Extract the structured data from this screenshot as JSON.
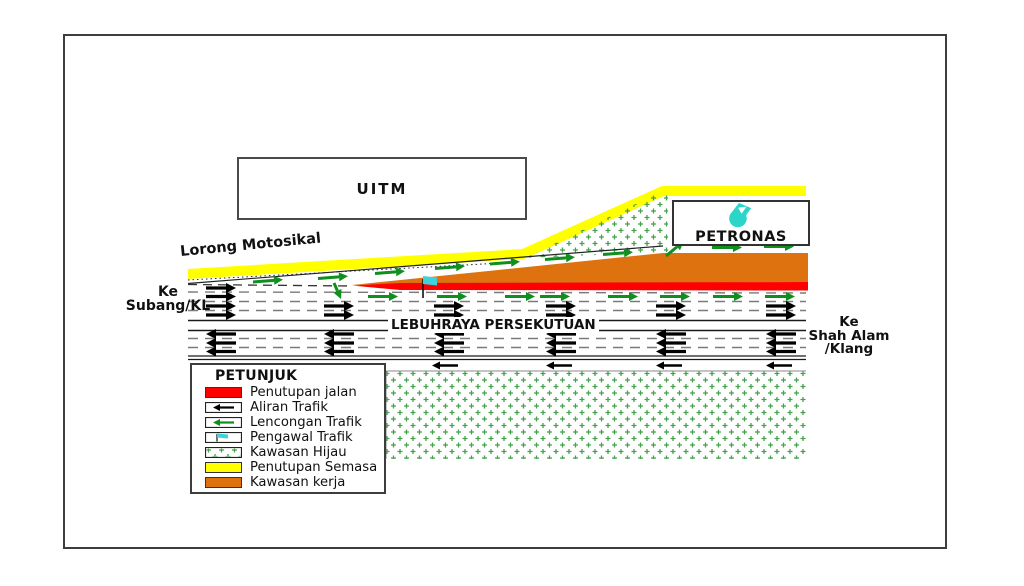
{
  "diagram": {
    "uitm_label": "UITM",
    "petronas_label": "PETRONAS",
    "lorong_motosikal_label": "Lorong Motosikal",
    "ke_subang_line1": "Ke",
    "ke_subang_line2": "Subang/KL",
    "highway_label": "LEBUHRAYA PERSEKUTUAN",
    "ke_shah_line1": "Ke",
    "ke_shah_line2": "Shah Alam",
    "ke_shah_line3": "/Klang"
  },
  "legend": {
    "title": "PETUNJUK",
    "items": [
      {
        "icon": "road-closure-swatch",
        "type": "solid-red",
        "label": "Penutupan jalan"
      },
      {
        "icon": "traffic-flow-arrow-icon",
        "type": "black-arrow",
        "label": "Aliran Trafik"
      },
      {
        "icon": "diversion-arrow-icon",
        "type": "green-arrow",
        "label": "Lencongan Trafik"
      },
      {
        "icon": "traffic-controller-flag-icon",
        "type": "flag",
        "label": "Pengawal Trafik"
      },
      {
        "icon": "green-area-swatch",
        "type": "hatch",
        "label": "Kawasan Hijau"
      },
      {
        "icon": "current-closure-swatch",
        "type": "solid-yellow",
        "label": "Penutupan Semasa"
      },
      {
        "icon": "work-area-swatch",
        "type": "solid-orange",
        "label": "Kawasan kerja"
      }
    ]
  },
  "colors": {
    "road_closure_red": "#FF0000",
    "work_area_orange": "#DD720F",
    "current_closure_yellow": "#FFFF00",
    "diversion_green": "#0E8F1E",
    "green_area_hatch": "#44A24C",
    "controller_cyan": "#3FD2DC",
    "petronas_logo_cyan": "#2BD6C9",
    "road_line": "#1a1a1a",
    "lane_dash_gray": "#7a7a7a",
    "frame_border": "#3d3d3d"
  }
}
